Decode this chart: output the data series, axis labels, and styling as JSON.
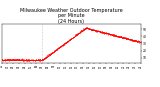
{
  "title": "Milwaukee Weather Outdoor Temperature\nper Minute\n(24 Hours)",
  "title_fontsize": 3.5,
  "dot_color": "#ff0000",
  "dot_size": 0.15,
  "background_color": "#ffffff",
  "ylim": [
    3,
    57
  ],
  "xlim": [
    0,
    1440
  ],
  "vline_x": 420,
  "vline_color": "#999999",
  "vline_style": ":",
  "y_tick_values": [
    10,
    20,
    30,
    40,
    50
  ],
  "y_tick_labels": [
    "10",
    "20",
    "30",
    "40",
    "50"
  ],
  "x_tick_step_minutes": 60
}
